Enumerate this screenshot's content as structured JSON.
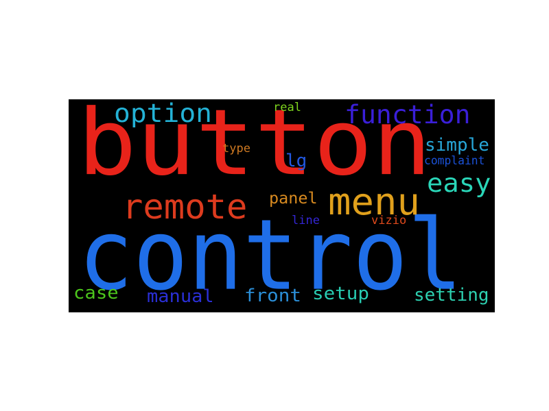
{
  "wordcloud": {
    "words": [
      {
        "text": "button",
        "color": "#e8231a"
      },
      {
        "text": "control",
        "color": "#1f6ee8"
      },
      {
        "text": "remote",
        "color": "#dd3b1e"
      },
      {
        "text": "menu",
        "color": "#e0a01c"
      },
      {
        "text": "option",
        "color": "#24b2d6"
      },
      {
        "text": "function",
        "color": "#3a1fd8"
      },
      {
        "text": "easy",
        "color": "#2ad6b8"
      },
      {
        "text": "simple",
        "color": "#27a6d8"
      },
      {
        "text": "lg",
        "color": "#2258e0"
      },
      {
        "text": "panel",
        "color": "#d88a20"
      },
      {
        "text": "type",
        "color": "#d07a22"
      },
      {
        "text": "real",
        "color": "#7fd61e"
      },
      {
        "text": "complaint",
        "color": "#1b52d8"
      },
      {
        "text": "line",
        "color": "#3426d6"
      },
      {
        "text": "vizio",
        "color": "#e04a1c"
      },
      {
        "text": "case",
        "color": "#4cc61c"
      },
      {
        "text": "manual",
        "color": "#2a2fd6"
      },
      {
        "text": "front",
        "color": "#2b8fd8"
      },
      {
        "text": "setup",
        "color": "#28ccb2"
      },
      {
        "text": "setting",
        "color": "#2dd0b0"
      }
    ]
  }
}
